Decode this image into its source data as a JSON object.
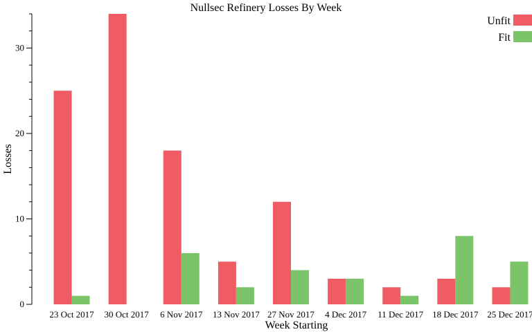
{
  "chart_data": {
    "type": "bar",
    "title": "Nullsec Refinery Losses By Week",
    "xlabel": "Week Starting",
    "ylabel": "Losses",
    "categories": [
      "23 Oct 2017",
      "30 Oct 2017",
      "6 Nov 2017",
      "13 Nov 2017",
      "27 Nov 2017",
      "4 Dec 2017",
      "11 Dec 2017",
      "18 Dec 2017",
      "25 Dec 2017"
    ],
    "series": [
      {
        "name": "Unfit",
        "color": "#f05c64",
        "values": [
          25,
          34,
          18,
          5,
          12,
          3,
          2,
          3,
          2
        ]
      },
      {
        "name": "Fit",
        "color": "#7cc46a",
        "values": [
          1,
          0,
          6,
          2,
          4,
          3,
          1,
          8,
          5
        ]
      }
    ],
    "ylim": [
      0,
      34
    ],
    "yticks": [
      0,
      10,
      20,
      30
    ],
    "grid": false,
    "legend": "top-right"
  }
}
